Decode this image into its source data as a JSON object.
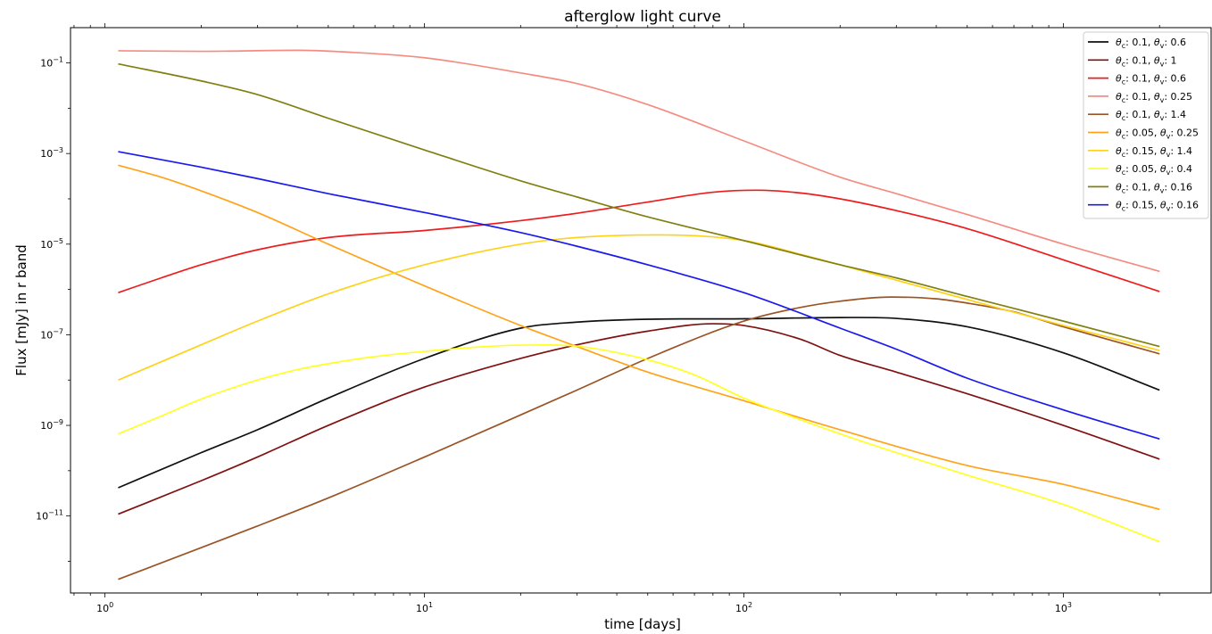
{
  "chart_data": {
    "type": "line",
    "title": "afterglow light curve",
    "xlabel": "time [days]",
    "ylabel": "Flux [mJy] in r band",
    "xscale": "log",
    "yscale": "log",
    "xlim": [
      0.78,
      2900
    ],
    "ylim": [
      2e-13,
      0.6
    ],
    "x_ticks": [
      {
        "value": 1,
        "base": "10",
        "exp": "0"
      },
      {
        "value": 10,
        "base": "10",
        "exp": "1"
      },
      {
        "value": 100,
        "base": "10",
        "exp": "2"
      },
      {
        "value": 1000,
        "base": "10",
        "exp": "3"
      }
    ],
    "y_ticks": [
      {
        "value": 1e-11,
        "base": "10",
        "exp": "−11"
      },
      {
        "value": 1e-09,
        "base": "10",
        "exp": "−9"
      },
      {
        "value": 1e-07,
        "base": "10",
        "exp": "−7"
      },
      {
        "value": 1e-05,
        "base": "10",
        "exp": "−5"
      },
      {
        "value": 0.001,
        "base": "10",
        "exp": "−3"
      },
      {
        "value": 0.1,
        "base": "10",
        "exp": "−1"
      }
    ],
    "grid": false,
    "legend_position": "top-right",
    "series": [
      {
        "c": "0.1",
        "v": "0.6",
        "color": "#111111",
        "x": [
          1.1,
          2,
          3,
          5,
          10,
          20,
          30,
          50,
          100,
          200,
          300,
          500,
          1000,
          2000
        ],
        "y": [
          4.2e-11,
          2.5e-10,
          8e-10,
          4e-09,
          3e-08,
          1.4e-07,
          1.9e-07,
          2.2e-07,
          2.25e-07,
          2.4e-07,
          2.3e-07,
          1.5e-07,
          4e-08,
          6e-09
        ]
      },
      {
        "c": "0.1",
        "v": "1",
        "color": "#7f1111",
        "x": [
          1.1,
          2,
          3,
          5,
          10,
          20,
          30,
          50,
          80,
          100,
          150,
          200,
          300,
          500,
          1000,
          2000
        ],
        "y": [
          1.1e-11,
          6e-11,
          2e-10,
          1e-09,
          7e-09,
          3e-08,
          6e-08,
          1.2e-07,
          1.75e-07,
          1.6e-07,
          8e-08,
          3.5e-08,
          1.5e-08,
          5e-09,
          1e-09,
          1.8e-10
        ]
      },
      {
        "c": "0.1",
        "v": "0.6",
        "color": "#ee1c1c",
        "x": [
          1.1,
          1.5,
          2,
          3,
          5,
          10,
          20,
          30,
          50,
          80,
          110,
          150,
          200,
          300,
          500,
          1000,
          2000
        ],
        "y": [
          8.5e-07,
          1.8e-06,
          3.5e-06,
          7.5e-06,
          1.4e-05,
          2e-05,
          3.3e-05,
          4.8e-05,
          8.5e-05,
          0.00014,
          0.000155,
          0.000135,
          0.0001,
          5.5e-05,
          2.2e-05,
          4.5e-06,
          9e-07
        ]
      },
      {
        "c": "0.1",
        "v": "0.25",
        "color": "#f58c82",
        "x": [
          1.1,
          2,
          4,
          6,
          10,
          20,
          30,
          50,
          100,
          200,
          300,
          500,
          1000,
          2000
        ],
        "y": [
          0.185,
          0.18,
          0.19,
          0.17,
          0.13,
          0.06,
          0.035,
          0.012,
          0.0019,
          0.0003,
          0.00013,
          4.5e-05,
          1e-05,
          2.5e-06
        ]
      },
      {
        "c": "0.1",
        "v": "1.4",
        "color": "#9a5426",
        "x": [
          1.1,
          2,
          3,
          5,
          10,
          20,
          30,
          50,
          100,
          150,
          200,
          290,
          400,
          500,
          700,
          1000,
          2000
        ],
        "y": [
          4e-13,
          2e-12,
          6e-12,
          2.5e-11,
          2e-10,
          1.7e-09,
          6e-09,
          3e-08,
          2e-07,
          4e-07,
          5.5e-07,
          6.8e-07,
          6.2e-07,
          5e-07,
          3.2e-07,
          1.5e-07,
          3.8e-08
        ]
      },
      {
        "c": "0.05",
        "v": "0.25",
        "color": "#ffa31a",
        "x": [
          1.1,
          1.5,
          2,
          3,
          5,
          10,
          20,
          30,
          50,
          100,
          200,
          500,
          1000,
          2000
        ],
        "y": [
          0.00055,
          0.0003,
          0.00015,
          5e-05,
          1e-05,
          1.2e-06,
          1.6e-07,
          5.5e-08,
          1.5e-08,
          3.5e-09,
          8e-10,
          1.3e-10,
          5e-11,
          1.4e-11
        ]
      },
      {
        "c": "0.15",
        "v": "1.4",
        "color": "#ffd21a",
        "x": [
          1.1,
          2,
          3,
          5,
          10,
          20,
          30,
          55,
          100,
          150,
          200,
          300,
          500,
          1000,
          2000
        ],
        "y": [
          1e-08,
          6e-08,
          2e-07,
          8e-07,
          3.5e-06,
          1e-05,
          1.4e-05,
          1.6e-05,
          1.2e-05,
          6e-06,
          3.5e-06,
          1.6e-06,
          6e-07,
          1.6e-07,
          4.5e-08
        ]
      },
      {
        "c": "0.05",
        "v": "0.4",
        "color": "#ffff26",
        "x": [
          1.1,
          1.5,
          2,
          3,
          4,
          5,
          7,
          10,
          15,
          20,
          30,
          50,
          70,
          100,
          200,
          300,
          500,
          1000,
          2000
        ],
        "y": [
          6.5e-10,
          1.6e-09,
          3.8e-09,
          1e-08,
          1.7e-08,
          2.3e-08,
          3.3e-08,
          4.3e-08,
          5.4e-08,
          5.9e-08,
          5.6e-08,
          2.8e-08,
          1.3e-08,
          4e-09,
          6.5e-10,
          2.5e-10,
          8e-11,
          1.8e-11,
          2.7e-12
        ]
      },
      {
        "c": "0.1",
        "v": "0.16",
        "color": "#808012",
        "x": [
          1.1,
          2,
          3,
          5,
          10,
          20,
          30,
          50,
          100,
          200,
          300,
          500,
          1000,
          2000
        ],
        "y": [
          0.095,
          0.04,
          0.02,
          0.006,
          0.0012,
          0.00025,
          0.00011,
          4e-05,
          1.2e-05,
          3.5e-06,
          1.8e-06,
          7e-07,
          2e-07,
          5.5e-08
        ]
      },
      {
        "c": "0.15",
        "v": "0.16",
        "color": "#1a1aee",
        "x": [
          1.1,
          2,
          3,
          5,
          10,
          20,
          30,
          50,
          100,
          200,
          300,
          500,
          1000,
          2000
        ],
        "y": [
          0.0011,
          0.0005,
          0.00028,
          0.00013,
          5e-05,
          1.8e-05,
          9e-06,
          3.5e-06,
          8.5e-07,
          1.4e-07,
          4.8e-08,
          1.1e-08,
          2.2e-09,
          5e-10
        ]
      }
    ]
  }
}
